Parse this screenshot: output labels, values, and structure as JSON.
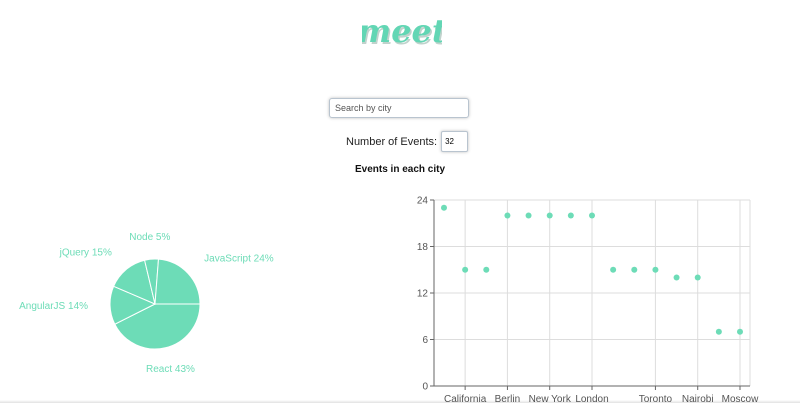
{
  "header": {
    "logo_text": "meet",
    "brand_color": "#62d6b4"
  },
  "search": {
    "placeholder": "Search by city",
    "value": ""
  },
  "events": {
    "label": "Number of Events:",
    "value": "32"
  },
  "section_title": "Events in each city",
  "chart_data": [
    {
      "type": "pie",
      "title": "",
      "color": "#6ddcb7",
      "slices": [
        {
          "label": "React",
          "value": 43,
          "display": "React 43%"
        },
        {
          "label": "AngularJS",
          "value": 14,
          "display": "AngularJS 14%"
        },
        {
          "label": "jQuery",
          "value": 15,
          "display": "jQuery 15%"
        },
        {
          "label": "Node",
          "value": 5,
          "display": "Node 5%"
        },
        {
          "label": "JavaScript",
          "value": 24,
          "display": "JavaScript 24%"
        }
      ]
    },
    {
      "type": "scatter",
      "title": "",
      "xlabel": "",
      "ylabel": "",
      "color": "#6ddcb7",
      "ylim": [
        0,
        24
      ],
      "yticks": [
        0,
        6,
        12,
        18,
        24
      ],
      "grid": true,
      "x_categories": [
        "",
        "California",
        "",
        "Berlin",
        "",
        "New York",
        "",
        "London",
        "",
        "",
        "Toronto",
        "",
        "Nairobi",
        "",
        "Moscow"
      ],
      "points": [
        {
          "x": 0,
          "y": 23
        },
        {
          "x": 1,
          "y": 15
        },
        {
          "x": 2,
          "y": 15
        },
        {
          "x": 3,
          "y": 22
        },
        {
          "x": 4,
          "y": 22
        },
        {
          "x": 5,
          "y": 22
        },
        {
          "x": 6,
          "y": 22
        },
        {
          "x": 7,
          "y": 22
        },
        {
          "x": 8,
          "y": 15
        },
        {
          "x": 9,
          "y": 15
        },
        {
          "x": 10,
          "y": 15
        },
        {
          "x": 11,
          "y": 14
        },
        {
          "x": 12,
          "y": 14
        },
        {
          "x": 13,
          "y": 7
        },
        {
          "x": 14,
          "y": 7
        }
      ]
    }
  ]
}
